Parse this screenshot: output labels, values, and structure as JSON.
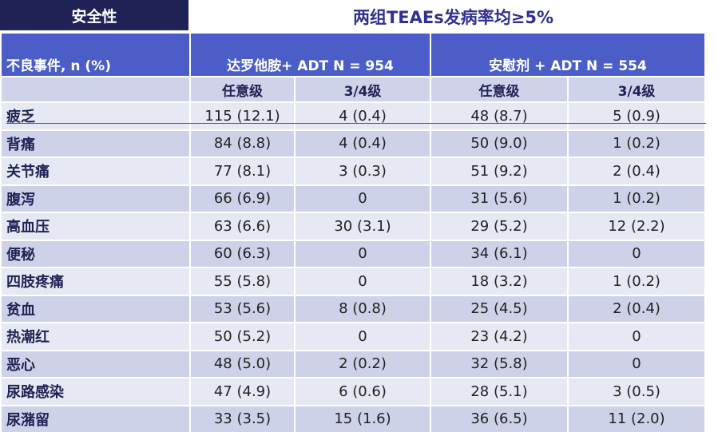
{
  "header": {
    "tag": "安全性",
    "title": "两组TEAEs发病率均≥5%"
  },
  "table": {
    "row_header": "不良事件, n (%)",
    "groups": [
      "达罗他胺+ ADT N = 954",
      "安慰剂 + ADT N = 554"
    ],
    "subheaders": [
      "任意级",
      "3/4级",
      "任意级",
      "3/4级"
    ],
    "rows": [
      {
        "name": "疲乏",
        "cells": [
          "115 (12.1)",
          "4 (0.4)",
          "48 (8.7)",
          "5 (0.9)"
        ]
      },
      {
        "name": "背痛",
        "cells": [
          "84 (8.8)",
          "4 (0.4)",
          "50 (9.0)",
          "1 (0.2)"
        ]
      },
      {
        "name": "关节痛",
        "cells": [
          "77 (8.1)",
          "3 (0.3)",
          "51 (9.2)",
          "2 (0.4)"
        ]
      },
      {
        "name": "腹泻",
        "cells": [
          "66 (6.9)",
          "0",
          "31 (5.6)",
          "1 (0.2)"
        ]
      },
      {
        "name": "高血压",
        "cells": [
          "63 (6.6)",
          "30 (3.1)",
          "29 (5.2)",
          "12 (2.2)"
        ]
      },
      {
        "name": "便秘",
        "cells": [
          "60 (6.3)",
          "0",
          "34 (6.1)",
          "0"
        ]
      },
      {
        "name": "四肢疼痛",
        "cells": [
          "55 (5.8)",
          "0",
          "18 (3.2)",
          "1 (0.2)"
        ]
      },
      {
        "name": "贫血",
        "cells": [
          "53 (5.6)",
          "8 (0.8)",
          "25 (4.5)",
          "2 (0.4)"
        ]
      },
      {
        "name": "热潮红",
        "cells": [
          "50 (5.2)",
          "0",
          "23 (4.2)",
          "0"
        ]
      },
      {
        "name": "恶心",
        "cells": [
          "48 (5.0)",
          "2 (0.2)",
          "32 (5.8)",
          "0"
        ]
      },
      {
        "name": "尿路感染",
        "cells": [
          "47 (4.9)",
          "6 (0.6)",
          "28 (5.1)",
          "3 (0.5)"
        ]
      },
      {
        "name": "尿潴留",
        "cells": [
          "33 (3.5)",
          "15 (1.6)",
          "36 (6.5)",
          "11 (2.0)"
        ]
      }
    ]
  },
  "colors": {
    "tag_bg": "#1f2254",
    "title": "#2e3192",
    "header_bg": "#4b5ec7",
    "highlight_line": "#cc2b2b"
  }
}
